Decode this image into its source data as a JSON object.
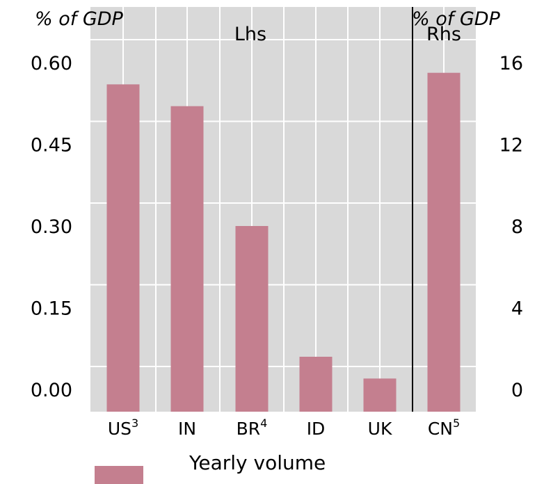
{
  "chart_data": {
    "type": "bar",
    "categories": [
      "US",
      "IN",
      "BR",
      "ID",
      "UK",
      "CN"
    ],
    "category_superscripts": [
      "3",
      "",
      "4",
      "",
      "",
      "5"
    ],
    "lhs": {
      "unit_label": "% of GDP",
      "panel_label": "Lhs",
      "ylim": [
        0,
        0.6
      ],
      "ticks": [
        "0.00",
        "0.15",
        "0.30",
        "0.45",
        "0.60"
      ],
      "categories": [
        "US",
        "IN",
        "BR",
        "ID",
        "UK"
      ],
      "values": [
        0.56,
        0.52,
        0.3,
        0.06,
        0.02
      ]
    },
    "rhs": {
      "unit_label": "% of GDP",
      "panel_label": "Rhs",
      "ylim": [
        0,
        16
      ],
      "ticks": [
        "0",
        "4",
        "8",
        "12",
        "16"
      ],
      "categories": [
        "CN"
      ],
      "values": [
        15.5
      ]
    },
    "series": [
      {
        "name": "Yearly volume",
        "color": "#c47f8f"
      }
    ],
    "grid": true,
    "background": "#d9d9d9",
    "legend_position": "bottom"
  }
}
